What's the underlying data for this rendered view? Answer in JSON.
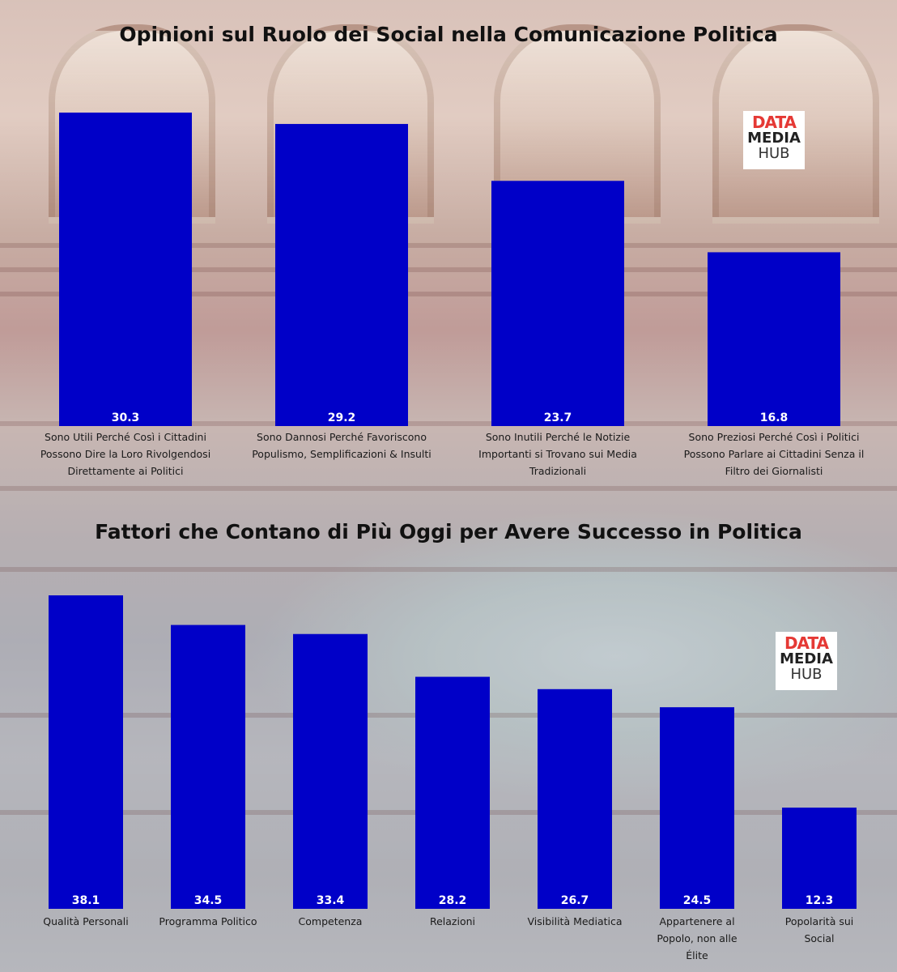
{
  "colors": {
    "bar": "#0000c8",
    "value_label": "#ffffff",
    "category_label": "#1a1a1a",
    "title": "#111111"
  },
  "logo": {
    "line1": "DATA",
    "line2": "MEDIA",
    "line3": "HUB"
  },
  "chart_data": [
    {
      "type": "bar",
      "title": "Opinioni sul Ruolo dei Social nella Comunicazione Politica",
      "categories": [
        [
          "Sono Utili Perché Così i Cittadini",
          "Possono Dire la Loro Rivolgendosi",
          "Direttamente ai Politici"
        ],
        [
          "Sono Dannosi Perché Favoriscono",
          "Populismo, Semplificazioni & Insulti"
        ],
        [
          "Sono Inutili Perché le Notizie",
          "Importanti si Trovano sui Media",
          "Tradizionali"
        ],
        [
          "Sono Preziosi Perché Così i Politici",
          "Possono Parlare ai Cittadini Senza il",
          "Filtro dei Giornalisti"
        ]
      ],
      "values": [
        30.3,
        29.2,
        23.7,
        16.8
      ],
      "value_labels": [
        "30.3",
        "29.2",
        "23.7",
        "16.8"
      ],
      "xlabel": "",
      "ylabel": "",
      "ylim": [
        0,
        30.3
      ],
      "grid": false,
      "legend": "none"
    },
    {
      "type": "bar",
      "title": "Fattori che Contano di Più Oggi per Avere Successo in Politica",
      "categories": [
        [
          "Qualità Personali"
        ],
        [
          "Programma Politico"
        ],
        [
          "Competenza"
        ],
        [
          "Relazioni"
        ],
        [
          "Visibilità Mediatica"
        ],
        [
          "Appartenere al",
          "Popolo, non alle",
          "Élite"
        ],
        [
          "Popolarità sui",
          "Social"
        ]
      ],
      "values": [
        38.1,
        34.5,
        33.4,
        28.2,
        26.7,
        24.5,
        12.3
      ],
      "value_labels": [
        "38.1",
        "34.5",
        "33.4",
        "28.2",
        "26.7",
        "24.5",
        "12.3"
      ],
      "xlabel": "",
      "ylabel": "",
      "ylim": [
        0,
        38.1
      ],
      "grid": false,
      "legend": "none"
    }
  ]
}
